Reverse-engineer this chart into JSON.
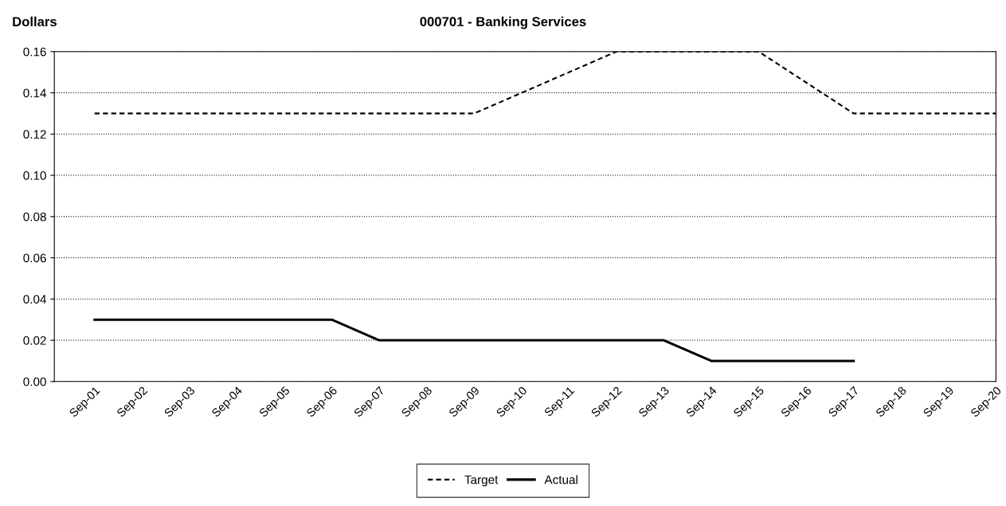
{
  "chart_data": {
    "type": "line",
    "title": "000701 - Banking Services",
    "ylabel": "Dollars",
    "categories": [
      "Sep-01",
      "Sep-02",
      "Sep-03",
      "Sep-04",
      "Sep-05",
      "Sep-06",
      "Sep-07",
      "Sep-08",
      "Sep-09",
      "Sep-10",
      "Sep-11",
      "Sep-12",
      "Sep-13",
      "Sep-14",
      "Sep-15",
      "Sep-16",
      "Sep-17",
      "Sep-18",
      "Sep-19",
      "Sep-20"
    ],
    "series": [
      {
        "name": "Target",
        "color": "#000000",
        "line_style": "dashed",
        "values": [
          0.13,
          0.13,
          0.13,
          0.13,
          0.13,
          0.13,
          0.13,
          0.13,
          0.13,
          0.14,
          0.15,
          0.16,
          0.16,
          0.16,
          0.16,
          0.145,
          0.13,
          0.13,
          0.13,
          0.13
        ]
      },
      {
        "name": "Actual",
        "color": "#000000",
        "line_style": "solid",
        "values": [
          0.03,
          0.03,
          0.03,
          0.03,
          0.03,
          0.03,
          0.02,
          0.02,
          0.02,
          0.02,
          0.02,
          0.02,
          0.02,
          0.01,
          0.01,
          0.01,
          0.01,
          null,
          null,
          null
        ]
      }
    ],
    "ylim": [
      0,
      0.16
    ],
    "yticks": [
      {
        "value": 0,
        "label": "0.00"
      },
      {
        "value": 0.02,
        "label": "0.02"
      },
      {
        "value": 0.04,
        "label": "0.04"
      },
      {
        "value": 0.06,
        "label": "0.06"
      },
      {
        "value": 0.08,
        "label": "0.08"
      },
      {
        "value": 0.1,
        "label": "0.10"
      },
      {
        "value": 0.12,
        "label": "0.12"
      },
      {
        "value": 0.14,
        "label": "0.14"
      },
      {
        "value": 0.16,
        "label": "0.16"
      }
    ],
    "grid": "y",
    "legend": "bottom",
    "marker": "none"
  }
}
